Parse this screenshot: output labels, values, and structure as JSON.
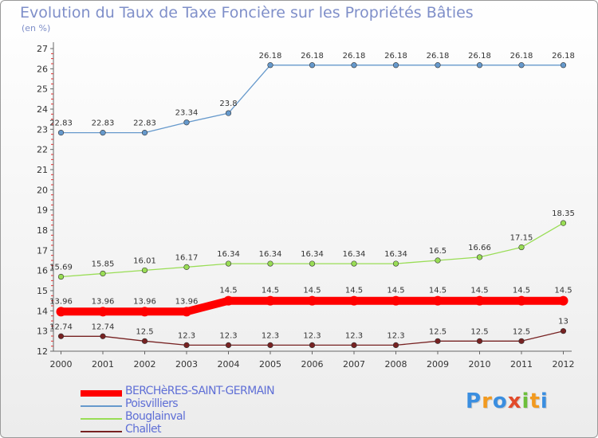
{
  "chart_data": {
    "type": "line",
    "title": "Evolution du Taux de Taxe Foncière sur les Propriétés Bâties",
    "subtitle": "(en %)",
    "x": [
      "2000",
      "2001",
      "2002",
      "2003",
      "2004",
      "2005",
      "2006",
      "2007",
      "2008",
      "2009",
      "2010",
      "2011",
      "2012"
    ],
    "yticks": [
      "12",
      "13",
      "14",
      "15",
      "16",
      "17",
      "18",
      "19",
      "20",
      "21",
      "22",
      "23",
      "24",
      "25",
      "26",
      "27"
    ],
    "ylim": [
      12,
      27
    ],
    "grid": false,
    "legend_position": "bottom-left",
    "series": [
      {
        "name": "BERCHèRES-SAINT-GERMAIN",
        "color": "#ff0000",
        "values": [
          13.96,
          13.96,
          13.96,
          13.96,
          14.5,
          14.5,
          14.5,
          14.5,
          14.5,
          14.5,
          14.5,
          14.5,
          14.5
        ],
        "labels": [
          "13.96",
          "13.96",
          "13.96",
          "13.96",
          "14.5",
          "14.5",
          "14.5",
          "14.5",
          "14.5",
          "14.5",
          "14.5",
          "14.5",
          "14.5"
        ]
      },
      {
        "name": "Poisvilliers",
        "color": "#6699cc",
        "values": [
          22.83,
          22.83,
          22.83,
          23.34,
          23.8,
          26.18,
          26.18,
          26.18,
          26.18,
          26.18,
          26.18,
          26.18,
          26.18
        ],
        "labels": [
          "22.83",
          "22.83",
          "22.83",
          "23.34",
          "23.8",
          "26.18",
          "26.18",
          "26.18",
          "26.18",
          "26.18",
          "26.18",
          "26.18",
          "26.18"
        ]
      },
      {
        "name": "Bouglainval",
        "color": "#99dd55",
        "values": [
          15.69,
          15.85,
          16.01,
          16.17,
          16.34,
          16.34,
          16.34,
          16.34,
          16.34,
          16.5,
          16.66,
          17.15,
          18.35
        ],
        "labels": [
          "15.69",
          "15.85",
          "16.01",
          "16.17",
          "16.34",
          "16.34",
          "16.34",
          "16.34",
          "16.34",
          "16.5",
          "16.66",
          "17.15",
          "18.35"
        ]
      },
      {
        "name": "Challet",
        "color": "#772222",
        "values": [
          12.74,
          12.74,
          12.5,
          12.3,
          12.3,
          12.3,
          12.3,
          12.3,
          12.3,
          12.5,
          12.5,
          12.5,
          13
        ],
        "labels": [
          "12.74",
          "12.74",
          "12.5",
          "12.3",
          "12.3",
          "12.3",
          "12.3",
          "12.3",
          "12.3",
          "12.5",
          "12.5",
          "12.5",
          "13"
        ]
      }
    ]
  },
  "brand": {
    "letters": [
      "P",
      "r",
      "o",
      "x",
      "i",
      "t",
      "i"
    ],
    "colors": [
      "#3a8ee0",
      "#f29a1f",
      "#3a8ee0",
      "#e24b2b",
      "#6cbf3a",
      "#f29a1f",
      "#3a8ee0"
    ]
  }
}
